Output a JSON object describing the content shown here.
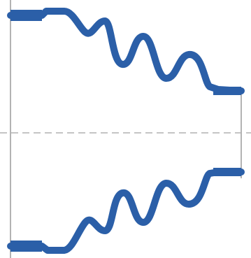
{
  "diagram": {
    "kind": "bellows-cross-section",
    "profile_color": "#2b5fa8",
    "axis_color": "#b0b0b0",
    "wall_color": "#9a9a9a",
    "background": "#ffffff"
  }
}
